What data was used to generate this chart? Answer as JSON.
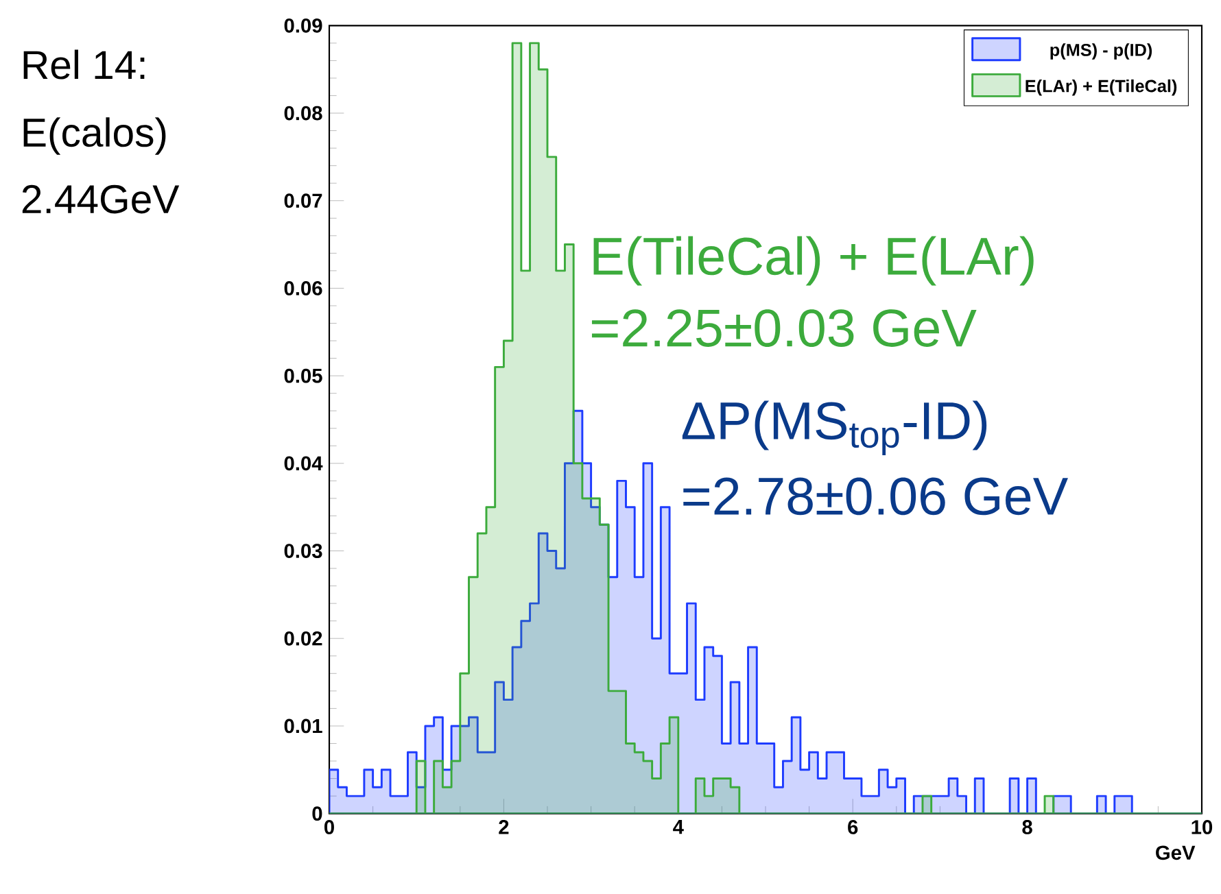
{
  "chart_data": {
    "type": "histogram",
    "bins": [
      0,
      0.1,
      0.2,
      0.3,
      0.4,
      0.5,
      0.6,
      0.7,
      0.8,
      0.9,
      1.0,
      1.1,
      1.2,
      1.3,
      1.4,
      1.5,
      1.6,
      1.7,
      1.8,
      1.9,
      2.0,
      2.1,
      2.2,
      2.3,
      2.4,
      2.5,
      2.6,
      2.7,
      2.8,
      2.9,
      3.0,
      3.1,
      3.2,
      3.3,
      3.4,
      3.5,
      3.6,
      3.7,
      3.8,
      3.9,
      4.0,
      4.1,
      4.2,
      4.3,
      4.4,
      4.5,
      4.6,
      4.7,
      4.8,
      4.9,
      5.0,
      5.1,
      5.2,
      5.3,
      5.4,
      5.5,
      5.6,
      5.7,
      5.8,
      5.9,
      6.0,
      6.1,
      6.2,
      6.3,
      6.4,
      6.5,
      6.6,
      6.7,
      6.8,
      6.9,
      7.0,
      7.1,
      7.2,
      7.3,
      7.4,
      7.5,
      7.6,
      7.7,
      7.8,
      7.9,
      8.0,
      8.1,
      8.2,
      8.3,
      8.4,
      8.5,
      8.6,
      8.7,
      8.8,
      8.9,
      9.0,
      9.1,
      9.2,
      9.3,
      9.4,
      9.5,
      9.6,
      9.7,
      9.8,
      9.9,
      10.0
    ],
    "series": [
      {
        "name": "p(MS) - p(ID)",
        "color": "#1e3cff",
        "values": [
          0.005,
          0.003,
          0.002,
          0.002,
          0.005,
          0.003,
          0.005,
          0.002,
          0.002,
          0.007,
          0.003,
          0.01,
          0.011,
          0.005,
          0.01,
          0.01,
          0.011,
          0.007,
          0.007,
          0.015,
          0.013,
          0.019,
          0.022,
          0.024,
          0.032,
          0.03,
          0.028,
          0.04,
          0.046,
          0.04,
          0.035,
          0.033,
          0.027,
          0.038,
          0.035,
          0.027,
          0.04,
          0.02,
          0.035,
          0.016,
          0.016,
          0.024,
          0.013,
          0.019,
          0.018,
          0.008,
          0.015,
          0.008,
          0.019,
          0.008,
          0.008,
          0.003,
          0.006,
          0.011,
          0.005,
          0.007,
          0.004,
          0.007,
          0.007,
          0.004,
          0.004,
          0.002,
          0.002,
          0.005,
          0.003,
          0.004,
          0,
          0.002,
          0.002,
          0.002,
          0.002,
          0.004,
          0.002,
          0,
          0.004,
          0,
          0,
          0,
          0.004,
          0,
          0.004,
          0,
          0,
          0.002,
          0.002,
          0,
          0,
          0,
          0.002,
          0,
          0.002,
          0.002,
          0,
          0,
          0,
          0,
          0,
          0,
          0,
          0
        ]
      },
      {
        "name": "E(LAr) + E(TileCal)",
        "color": "#3cab3c",
        "values": [
          0,
          0,
          0,
          0,
          0,
          0,
          0,
          0,
          0,
          0,
          0.006,
          0,
          0.006,
          0.003,
          0.006,
          0.016,
          0.027,
          0.032,
          0.035,
          0.051,
          0.054,
          0.088,
          0.062,
          0.088,
          0.085,
          0.075,
          0.062,
          0.065,
          0.04,
          0.036,
          0.036,
          0.033,
          0.014,
          0.014,
          0.008,
          0.007,
          0.006,
          0.004,
          0.008,
          0.011,
          0,
          0,
          0.004,
          0.002,
          0.004,
          0.004,
          0.003,
          0,
          0,
          0,
          0,
          0,
          0,
          0,
          0,
          0,
          0,
          0,
          0,
          0,
          0,
          0,
          0,
          0,
          0,
          0,
          0,
          0,
          0.002,
          0,
          0,
          0,
          0,
          0,
          0,
          0,
          0,
          0,
          0,
          0,
          0,
          0,
          0.002,
          0,
          0,
          0,
          0,
          0,
          0,
          0,
          0,
          0,
          0,
          0,
          0,
          0,
          0,
          0,
          0,
          0
        ]
      }
    ],
    "xlabel": "GeV",
    "xlim": [
      0,
      10
    ],
    "xticks": [
      0,
      2,
      4,
      6,
      8,
      10
    ],
    "ylim": [
      0,
      0.09
    ],
    "yticks": [
      0,
      0.01,
      0.02,
      0.03,
      0.04,
      0.05,
      0.06,
      0.07,
      0.08,
      0.09
    ],
    "legend": "top right",
    "annotations": [
      "Rel 14:",
      "E(calos)",
      "2.44GeV",
      "E(TileCal) + E(LAr)",
      "=2.25±0.03 GeV",
      "ΔP(MS$_{top}$-ID)",
      "=2.78±0.06 GeV"
    ]
  }
}
